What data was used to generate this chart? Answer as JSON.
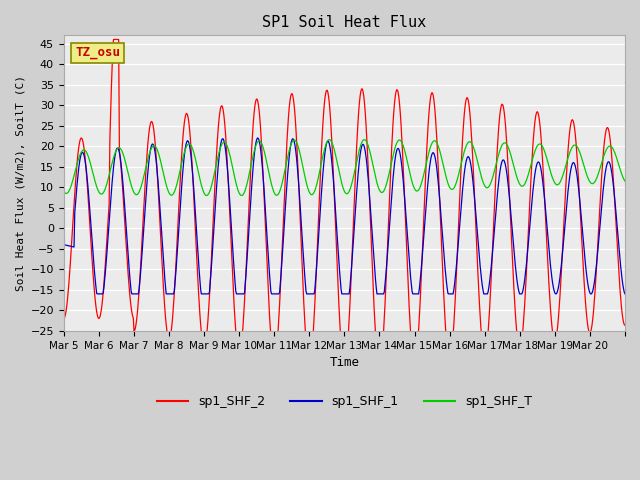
{
  "title": "SP1 Soil Heat Flux",
  "xlabel": "Time",
  "ylabel": "Soil Heat Flux (W/m2), SoilT (C)",
  "ylim": [
    -25,
    47
  ],
  "yticks": [
    -25,
    -20,
    -15,
    -10,
    -5,
    0,
    5,
    10,
    15,
    20,
    25,
    30,
    35,
    40,
    45
  ],
  "tz_label": "TZ_osu",
  "legend_labels": [
    "sp1_SHF_2",
    "sp1_SHF_1",
    "sp1_SHF_T"
  ],
  "line_colors": [
    "#ff0000",
    "#0000cc",
    "#00cc00"
  ],
  "plot_bg_color": "#ebebeb",
  "fig_bg_color": "#d0d0d0",
  "x_tick_labels": [
    "Mar 5",
    "Mar 6",
    "Mar 7",
    "Mar 8",
    "Mar 9",
    "Mar 10",
    "Mar 11",
    "Mar 12",
    "Mar 13",
    "Mar 14",
    "Mar 15",
    "Mar 16",
    "Mar 17",
    "Mar 18",
    "Mar 19",
    "Mar 20",
    ""
  ],
  "n_days": 16,
  "start_day": 5
}
